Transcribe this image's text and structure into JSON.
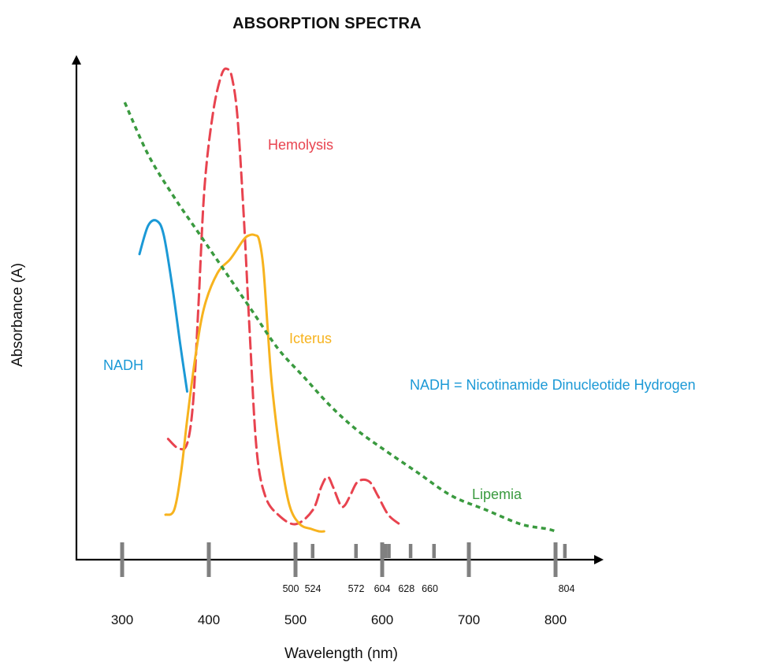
{
  "chart_data": {
    "type": "line",
    "title": "ABSORPTION SPECTRA",
    "xlabel": "Wavelength (nm)",
    "ylabel": "Absorbance (A)",
    "xlim": [
      250,
      830
    ],
    "ylim": [
      0,
      1.0
    ],
    "grid": false,
    "x_major_ticks": [
      "300",
      "400",
      "500",
      "600",
      "700",
      "800"
    ],
    "x_minor_ticks": [
      {
        "value": 500,
        "label": "500"
      },
      {
        "value": 520,
        "label": "524"
      },
      {
        "value": 570,
        "label": "572"
      },
      {
        "value": 600,
        "label": "604"
      },
      {
        "value": 628,
        "label": "628"
      },
      {
        "value": 655,
        "label": "660"
      },
      {
        "value": 800,
        "label": "804"
      }
    ],
    "x_tick_marks": [
      300,
      400,
      500,
      520,
      570,
      600,
      604,
      608,
      633,
      660,
      700,
      800,
      811
    ],
    "series": [
      {
        "name": "Hemolysis",
        "color": "#e8434f",
        "style": "dashed",
        "x": [
          353,
          365,
          375,
          382,
          388,
          395,
          405,
          415,
          422,
          427,
          433,
          440,
          447,
          455,
          465,
          480,
          500,
          520,
          530,
          537,
          543,
          552,
          557,
          563,
          572,
          585,
          595,
          607,
          620
        ],
        "y": [
          0.22,
          0.2,
          0.21,
          0.3,
          0.5,
          0.75,
          0.91,
          0.99,
          1.0,
          0.98,
          0.9,
          0.7,
          0.45,
          0.2,
          0.1,
          0.06,
          0.04,
          0.07,
          0.12,
          0.14,
          0.12,
          0.08,
          0.08,
          0.1,
          0.13,
          0.13,
          0.1,
          0.06,
          0.04
        ]
      },
      {
        "name": "Icterus",
        "color": "#f7b31e",
        "style": "solid",
        "x": [
          350,
          360,
          368,
          375,
          385,
          395,
          410,
          425,
          440,
          447,
          453,
          458,
          463,
          468,
          473,
          483,
          493,
          505,
          518,
          527,
          533
        ],
        "y": [
          0.06,
          0.07,
          0.15,
          0.26,
          0.4,
          0.5,
          0.57,
          0.6,
          0.64,
          0.65,
          0.65,
          0.64,
          0.58,
          0.45,
          0.33,
          0.18,
          0.08,
          0.04,
          0.03,
          0.025,
          0.025
        ]
      },
      {
        "name": "Lipemia",
        "color": "#3a9a3f",
        "style": "dotted",
        "x": [
          303,
          330,
          360,
          390,
          420,
          450,
          480,
          510,
          540,
          570,
          600,
          640,
          680,
          720,
          760,
          790,
          800
        ],
        "y": [
          0.93,
          0.82,
          0.73,
          0.65,
          0.57,
          0.49,
          0.41,
          0.35,
          0.29,
          0.24,
          0.2,
          0.15,
          0.1,
          0.07,
          0.04,
          0.03,
          0.025
        ]
      },
      {
        "name": "NADH",
        "color": "#1b99d6",
        "style": "solid",
        "x": [
          320,
          330,
          340,
          348,
          358,
          367,
          375
        ],
        "y": [
          0.61,
          0.67,
          0.68,
          0.65,
          0.54,
          0.42,
          0.32
        ]
      }
    ],
    "annotations": [
      {
        "text": "Hemolysis",
        "color": "#e8434f"
      },
      {
        "text": "Icterus",
        "color": "#f7b31e"
      },
      {
        "text": "NADH",
        "color": "#1b99d6"
      },
      {
        "text": "Lipemia",
        "color": "#3a9a3f"
      },
      {
        "text": "NADH = Nicotinamide Dinucleotide Hydrogen",
        "color": "#1b99d6"
      }
    ]
  }
}
